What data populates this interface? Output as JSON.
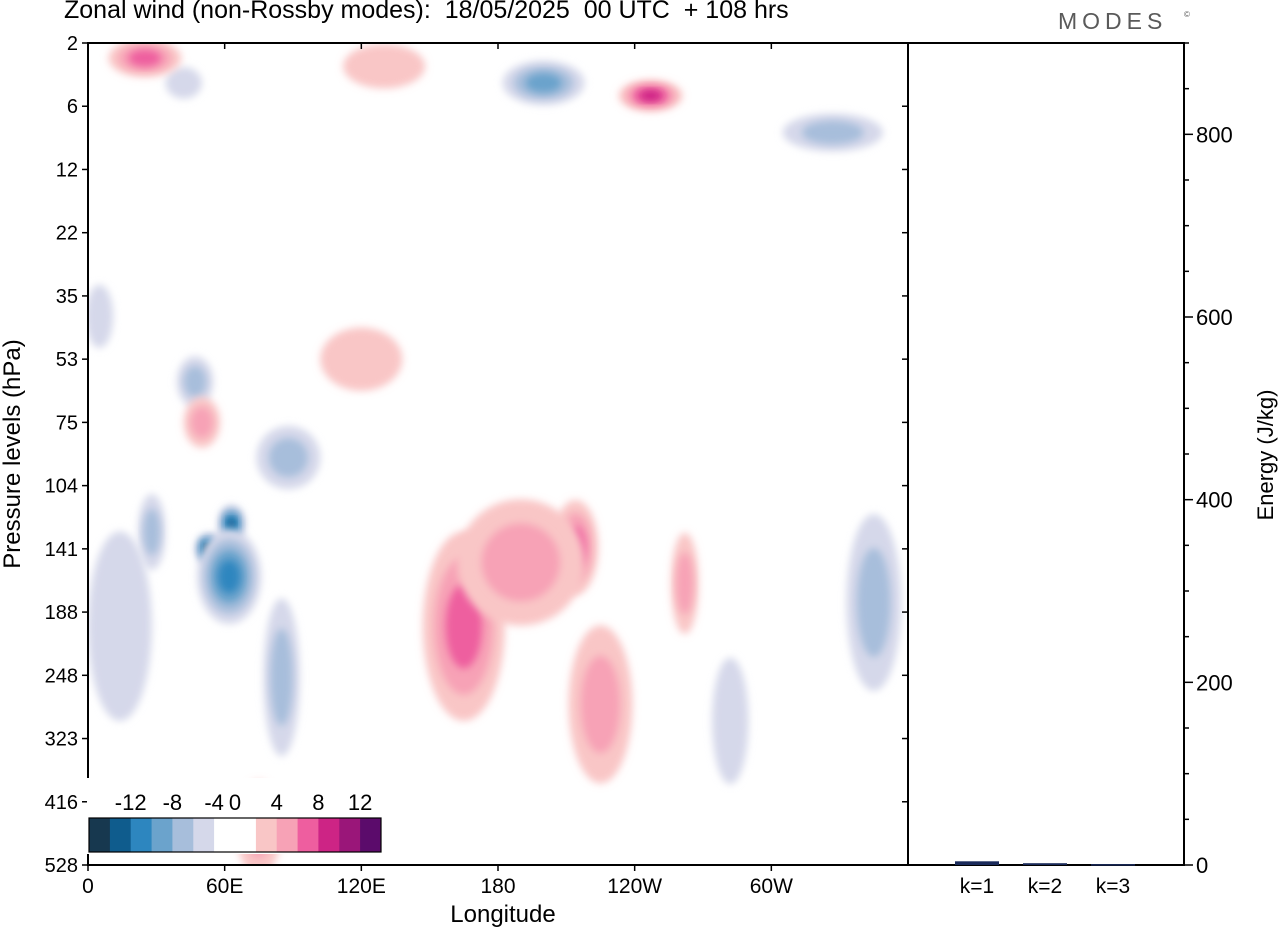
{
  "title": "Zonal wind (non-Rossby modes):  18/05/2025  00 UTC  + 108 hrs",
  "brand": "MODES",
  "brand_mark": "©",
  "colors": {
    "neg": [
      "#17384f",
      "#0f5c8d",
      "#2d86bf",
      "#6ba3cc",
      "#a7bedb",
      "#d5d8ea"
    ],
    "pos": [
      "#f9c6c6",
      "#f7a2b6",
      "#ee5e9f",
      "#cd2485",
      "#9a1679",
      "#5b0b6b"
    ],
    "axis": "#000000",
    "bar": "#1a2a5a"
  },
  "chart_data": [
    {
      "type": "heatmap",
      "subtype": "filled-contour",
      "xlabel": "Longitude",
      "ylabel": "Pressure levels (hPa)",
      "x_ticks": [
        "0",
        "60E",
        "120E",
        "180",
        "120W",
        "60W"
      ],
      "x_tick_lon": [
        0,
        60,
        120,
        180,
        240,
        300
      ],
      "xlim": [
        0,
        360
      ],
      "y_ticks": [
        "2",
        "6",
        "12",
        "22",
        "35",
        "53",
        "75",
        "104",
        "141",
        "188",
        "248",
        "323",
        "416",
        "528"
      ],
      "colorbar": {
        "labels": [
          "-12",
          "-8",
          "-4",
          "0",
          "4",
          "8",
          "12"
        ],
        "levels": [
          -14,
          -12,
          -10,
          -8,
          -6,
          -4,
          -2,
          2,
          4,
          6,
          8,
          10,
          12,
          14
        ]
      },
      "features": [
        {
          "lon": 53,
          "level": 141,
          "value": -13,
          "extent_lon": 6,
          "extent_lev": 0.5
        },
        {
          "lon": 63,
          "level": 125,
          "value": -11,
          "extent_lon": 6,
          "extent_lev": 0.6
        },
        {
          "lon": 62,
          "level": 160,
          "value": -8,
          "extent_lon": 14,
          "extent_lev": 1.5
        },
        {
          "lon": 85,
          "level": 250,
          "value": -5,
          "extent_lon": 8,
          "extent_lev": 2.5
        },
        {
          "lon": 28,
          "level": 130,
          "value": -5,
          "extent_lon": 6,
          "extent_lev": 1.2
        },
        {
          "lon": 14,
          "level": 200,
          "value": -3,
          "extent_lon": 14,
          "extent_lev": 3
        },
        {
          "lon": 88,
          "level": 90,
          "value": -4,
          "extent_lon": 14,
          "extent_lev": 1
        },
        {
          "lon": 47,
          "level": 60,
          "value": -4,
          "extent_lon": 8,
          "extent_lev": 0.8
        },
        {
          "lon": 200,
          "level": 4,
          "value": -6,
          "extent_lon": 18,
          "extent_lev": 0.7
        },
        {
          "lon": 42,
          "level": 4,
          "value": -3,
          "extent_lon": 8,
          "extent_lev": 0.5
        },
        {
          "lon": 327,
          "level": 8,
          "value": -5,
          "extent_lon": 22,
          "extent_lev": 0.6
        },
        {
          "lon": 345,
          "level": 180,
          "value": -5,
          "extent_lon": 12,
          "extent_lev": 2.8
        },
        {
          "lon": 282,
          "level": 300,
          "value": -3,
          "extent_lon": 8,
          "extent_lev": 2
        },
        {
          "lon": 5,
          "level": 40,
          "value": -3,
          "extent_lon": 6,
          "extent_lev": 1
        },
        {
          "lon": 170,
          "level": 160,
          "value": 9,
          "extent_lon": 14,
          "extent_lev": 1.3
        },
        {
          "lon": 165,
          "level": 200,
          "value": 6,
          "extent_lon": 18,
          "extent_lev": 3
        },
        {
          "lon": 214,
          "level": 140,
          "value": 6,
          "extent_lon": 10,
          "extent_lev": 1.5
        },
        {
          "lon": 190,
          "level": 150,
          "value": 4,
          "extent_lon": 28,
          "extent_lev": 2
        },
        {
          "lon": 225,
          "level": 280,
          "value": 5,
          "extent_lon": 14,
          "extent_lev": 2.5
        },
        {
          "lon": 262,
          "level": 165,
          "value": 5,
          "extent_lon": 6,
          "extent_lev": 1.6
        },
        {
          "lon": 25,
          "level": 2.6,
          "value": 7,
          "extent_lon": 16,
          "extent_lev": 0.6
        },
        {
          "lon": 247,
          "level": 5,
          "value": 8,
          "extent_lon": 14,
          "extent_lev": 0.5
        },
        {
          "lon": 50,
          "level": 75,
          "value": 5,
          "extent_lon": 8,
          "extent_lev": 0.8
        },
        {
          "lon": 130,
          "level": 3,
          "value": 3,
          "extent_lon": 18,
          "extent_lev": 0.7
        },
        {
          "lon": 75,
          "level": 460,
          "value": 4,
          "extent_lon": 10,
          "extent_lev": 1.5
        },
        {
          "lon": 120,
          "level": 53,
          "value": 3,
          "extent_lon": 18,
          "extent_lev": 1
        }
      ]
    },
    {
      "type": "bar",
      "categories": [
        "k=1",
        "k=2",
        "k=3"
      ],
      "values": [
        4,
        2,
        1
      ],
      "ylabel": "Energy (J/kg)",
      "ylim": [
        0,
        900
      ],
      "y_ticks": [
        "0",
        "200",
        "400",
        "600",
        "800"
      ],
      "y_tick_values": [
        0,
        200,
        400,
        600,
        800
      ]
    }
  ]
}
